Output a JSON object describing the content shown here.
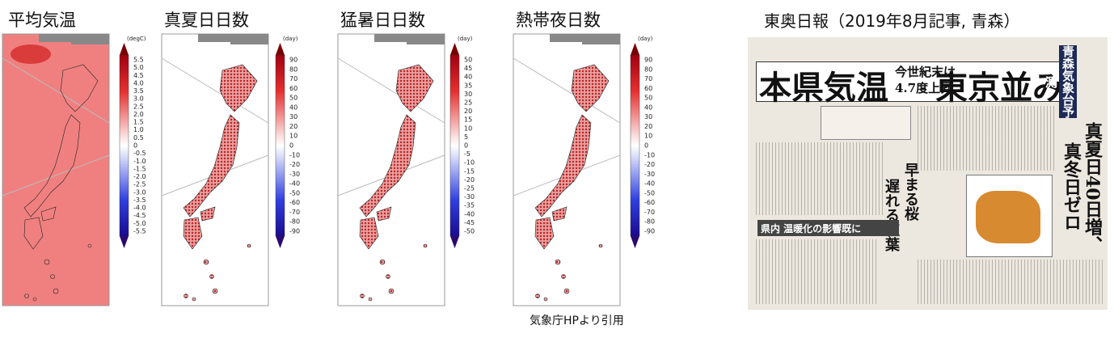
{
  "panels": [
    {
      "title": "平均気温",
      "unit": "(degC)",
      "ticks": [
        "5.5",
        "5.0",
        "4.5",
        "4.0",
        "3.5",
        "3.0",
        "2.5",
        "2.0",
        "1.5",
        "1.0",
        "0.5",
        "0",
        "-0.5",
        "-1.0",
        "-1.5",
        "-2.0",
        "-2.5",
        "-3.0",
        "-3.5",
        "-4.0",
        "-4.5",
        "-5.0",
        "-5.5"
      ]
    },
    {
      "title": "真夏日日数",
      "unit": "(day)",
      "ticks": [
        "90",
        "80",
        "70",
        "60",
        "50",
        "40",
        "30",
        "20",
        "10",
        "0",
        "-10",
        "-20",
        "-30",
        "-40",
        "-50",
        "-60",
        "-70",
        "-80",
        "-90"
      ]
    },
    {
      "title": "猛暑日日数",
      "unit": "(day)",
      "ticks": [
        "50",
        "45",
        "40",
        "35",
        "30",
        "25",
        "20",
        "15",
        "10",
        "5",
        "0",
        "-5",
        "-10",
        "-15",
        "-20",
        "-25",
        "-30",
        "-35",
        "-40",
        "-45",
        "-50"
      ]
    },
    {
      "title": "熱帯夜日数",
      "unit": "(day)",
      "ticks": [
        "90",
        "80",
        "70",
        "60",
        "50",
        "40",
        "30",
        "20",
        "10",
        "0",
        "-10",
        "-20",
        "-30",
        "-40",
        "-50",
        "-60",
        "-70",
        "-80",
        "-90"
      ]
    }
  ],
  "credit": "気象庁HPより引用",
  "newspaper": {
    "title": "東奥日報（2019年8月記事, 青森）",
    "headline": "本県気温",
    "subhead": [
      "今世紀末は",
      "4.7度上昇"
    ],
    "headline2": "東京並み",
    "side_label": "青森気象台予測",
    "side_headline": [
      "真夏日40日増、",
      "真冬日ゼロ"
    ],
    "column_headline": [
      "早まる桜",
      "遅れる紅葉"
    ],
    "section_headline": "県内 温暖化の影響既に"
  }
}
